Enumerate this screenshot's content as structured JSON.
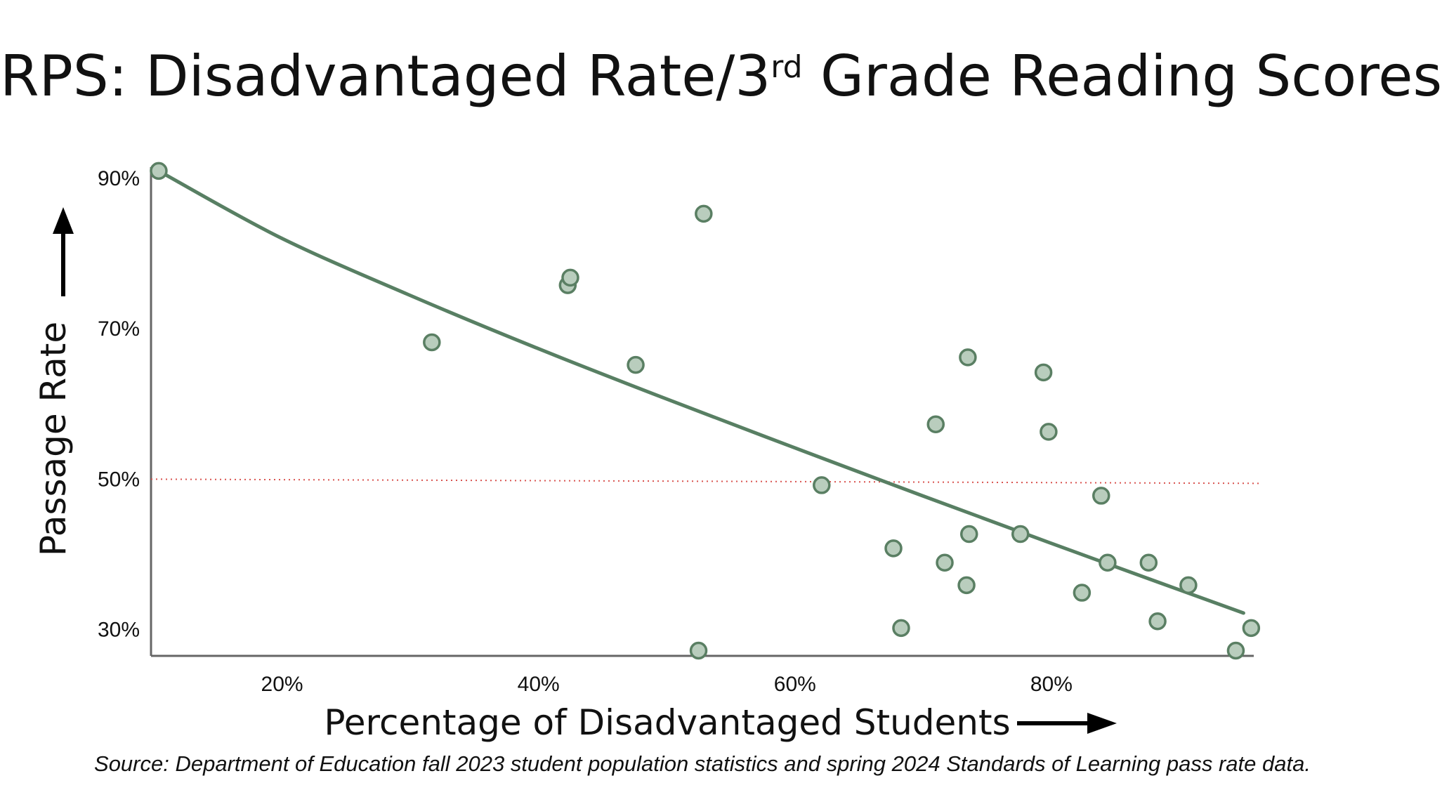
{
  "title": {
    "main": "RPS: Disadvantaged Rate/3",
    "superscript": "rd",
    "rest": " Grade Reading Scores"
  },
  "source": "Source: Department of Education fall 2023 student population statistics and spring 2024 Standards of Learning pass rate data.",
  "chart_data": {
    "type": "scatter",
    "title": "RPS: Disadvantaged Rate/3rd Grade Reading Scores",
    "xlabel": "Percentage of Disadvantaged Students",
    "ylabel": "Passage Rate",
    "x_ticks": [
      {
        "value": 20,
        "label": "20%"
      },
      {
        "value": 40,
        "label": "40%"
      },
      {
        "value": 60,
        "label": "60%"
      },
      {
        "value": 80,
        "label": "80%"
      }
    ],
    "y_ticks": [
      {
        "value": 30,
        "label": "30%"
      },
      {
        "value": 50,
        "label": "50%"
      },
      {
        "value": 70,
        "label": "70%"
      },
      {
        "value": 90,
        "label": "90%"
      }
    ],
    "xlim": [
      10,
      96
    ],
    "ylim": [
      26.5,
      91.5
    ],
    "reference_line": {
      "y": 50,
      "style": "dotted",
      "color": "#d9534f"
    },
    "points": [
      {
        "x": 10.6,
        "y": 91.0
      },
      {
        "x": 31.9,
        "y": 68.2
      },
      {
        "x": 42.5,
        "y": 75.8
      },
      {
        "x": 42.7,
        "y": 76.8
      },
      {
        "x": 47.8,
        "y": 65.2
      },
      {
        "x": 53.1,
        "y": 85.3
      },
      {
        "x": 52.7,
        "y": 27.2
      },
      {
        "x": 62.3,
        "y": 49.2
      },
      {
        "x": 67.9,
        "y": 40.8
      },
      {
        "x": 68.5,
        "y": 30.2
      },
      {
        "x": 71.2,
        "y": 57.3
      },
      {
        "x": 71.9,
        "y": 38.9
      },
      {
        "x": 73.7,
        "y": 66.2
      },
      {
        "x": 73.6,
        "y": 35.9
      },
      {
        "x": 73.8,
        "y": 42.7
      },
      {
        "x": 77.8,
        "y": 42.7
      },
      {
        "x": 79.6,
        "y": 64.2
      },
      {
        "x": 80.0,
        "y": 56.3
      },
      {
        "x": 82.6,
        "y": 34.9
      },
      {
        "x": 84.1,
        "y": 47.8
      },
      {
        "x": 84.6,
        "y": 38.9
      },
      {
        "x": 87.8,
        "y": 38.9
      },
      {
        "x": 88.5,
        "y": 31.1
      },
      {
        "x": 90.9,
        "y": 35.9
      },
      {
        "x": 94.6,
        "y": 27.2
      },
      {
        "x": 95.8,
        "y": 30.2
      }
    ],
    "trendline": [
      {
        "x": 10.6,
        "y": 91.0
      },
      {
        "x": 20,
        "y": 82.2
      },
      {
        "x": 30,
        "y": 74.6
      },
      {
        "x": 40,
        "y": 67.5
      },
      {
        "x": 50,
        "y": 60.8
      },
      {
        "x": 60,
        "y": 54.3
      },
      {
        "x": 70,
        "y": 47.9
      },
      {
        "x": 80,
        "y": 41.6
      },
      {
        "x": 90,
        "y": 35.4
      },
      {
        "x": 95.2,
        "y": 32.2
      }
    ],
    "colors": {
      "trendline": "#587f63",
      "point_fill": "#b9cdbd",
      "point_stroke": "#5a7f63",
      "axis": "#666666"
    }
  }
}
